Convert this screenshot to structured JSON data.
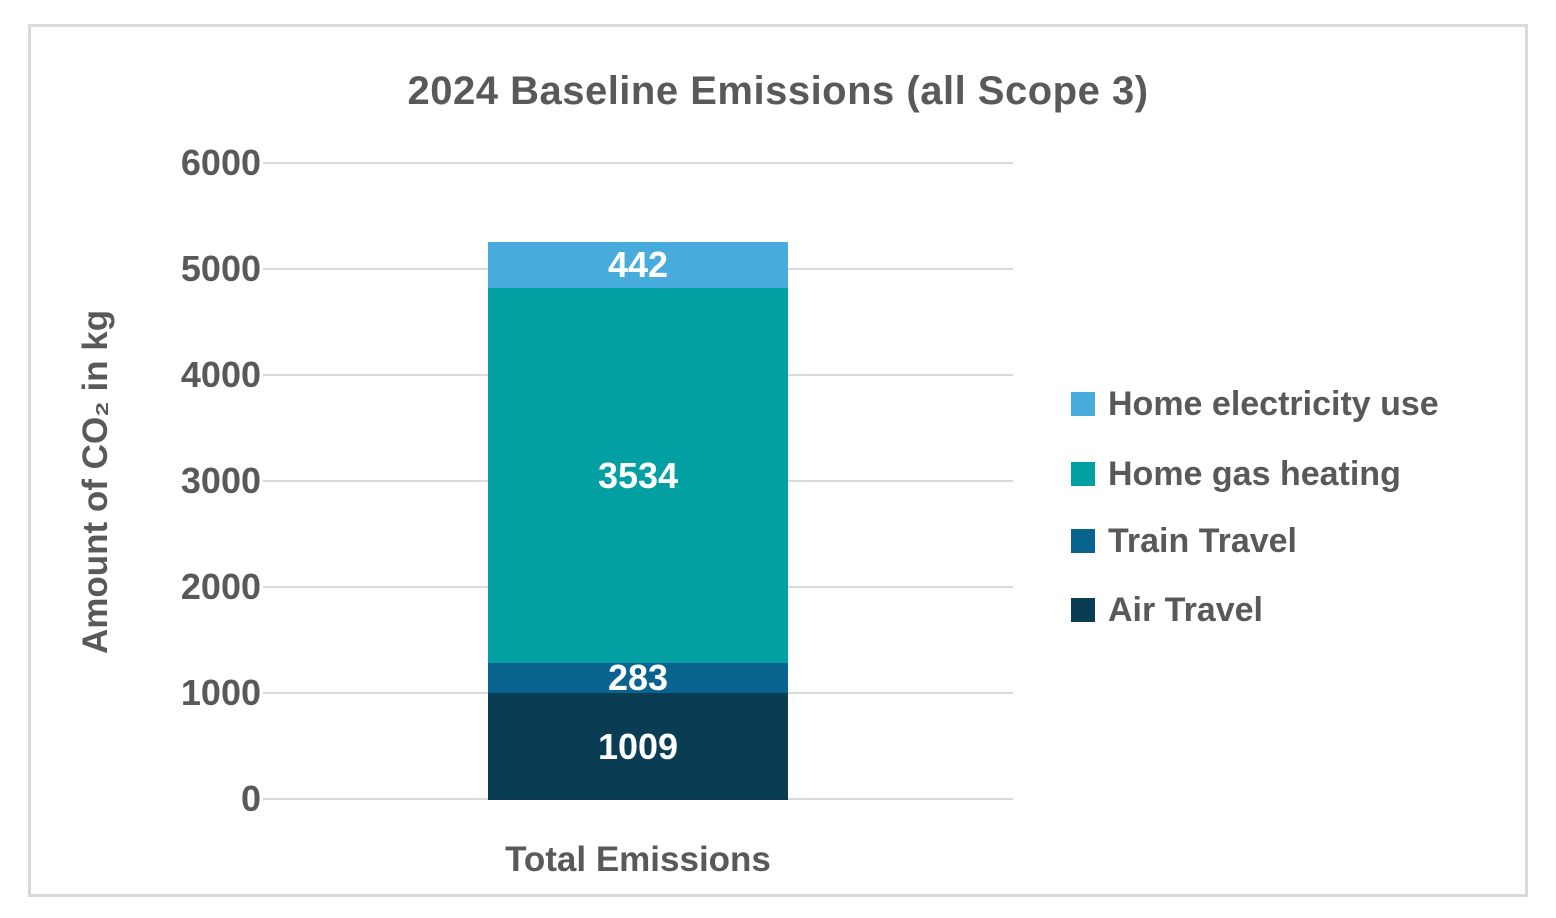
{
  "chart_data": {
    "type": "bar",
    "stacked": true,
    "title": "2024 Baseline Emissions (all Scope 3)",
    "categories": [
      "Total Emissions"
    ],
    "series": [
      {
        "name": "Air Travel",
        "values": [
          1009
        ],
        "color": "#0A3D53"
      },
      {
        "name": "Train Travel",
        "values": [
          283
        ],
        "color": "#09638F"
      },
      {
        "name": "Home gas heating",
        "values": [
          3534
        ],
        "color": "#02A0A2"
      },
      {
        "name": "Home electricity use",
        "values": [
          442
        ],
        "color": "#47ABDB"
      }
    ],
    "xlabel": "",
    "ylabel": "Amount of CO₂ in kg",
    "ylim": [
      0,
      6000
    ],
    "yticks": [
      6000,
      5000,
      4000,
      3000,
      2000,
      1000,
      0
    ],
    "grid": true,
    "legend_position": "right",
    "legend_order_top_to_bottom": [
      "Home electricity use",
      "Home gas heating",
      "Train Travel",
      "Air Travel"
    ]
  },
  "colors": {
    "text": "#595959",
    "gridline": "#D9D9D9",
    "border": "#D9D9D9",
    "data_label_text": "#FFFFFF"
  }
}
